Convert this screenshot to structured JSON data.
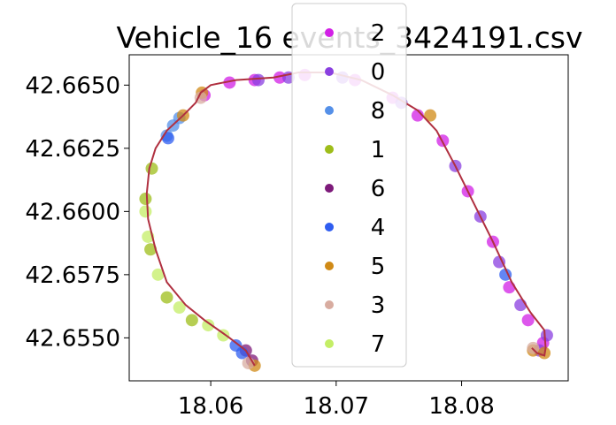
{
  "chart_data": {
    "type": "scatter",
    "title": "Vehicle_16 events_3424191.csv",
    "xlabel": "",
    "ylabel": "",
    "xlim": [
      18.0535,
      18.0885
    ],
    "ylim": [
      42.6533,
      42.6662
    ],
    "x_ticks": [
      "18.06",
      "18.07",
      "18.08"
    ],
    "x_tick_values": [
      18.06,
      18.07,
      18.08
    ],
    "y_ticks": [
      "42.6550",
      "42.6575",
      "42.6600",
      "42.6625",
      "42.6650"
    ],
    "y_tick_values": [
      42.655,
      42.6575,
      42.66,
      42.6625,
      42.665
    ],
    "grid": false,
    "legend_position": "top-center",
    "route_line_color": "#b03040",
    "series": [
      {
        "name": "2",
        "color": "#d21fe6",
        "points": [
          [
            18.0595,
            42.6646
          ],
          [
            18.0615,
            42.6651
          ],
          [
            18.0635,
            42.6652
          ],
          [
            18.0655,
            42.6653
          ],
          [
            18.0675,
            42.6654
          ],
          [
            18.0715,
            42.6652
          ],
          [
            18.0745,
            42.6645
          ],
          [
            18.0765,
            42.6638
          ],
          [
            18.0785,
            42.6628
          ],
          [
            18.0805,
            42.6608
          ],
          [
            18.0825,
            42.6588
          ],
          [
            18.0838,
            42.657
          ],
          [
            18.0853,
            42.6557
          ],
          [
            18.0865,
            42.6548
          ]
        ]
      },
      {
        "name": "0",
        "color": "#8a3fe0",
        "points": [
          [
            18.0638,
            42.6652
          ],
          [
            18.0662,
            42.6653
          ],
          [
            18.0705,
            42.6653
          ],
          [
            18.0752,
            42.6643
          ],
          [
            18.0795,
            42.6618
          ],
          [
            18.0815,
            42.6598
          ],
          [
            18.083,
            42.658
          ],
          [
            18.0847,
            42.6563
          ],
          [
            18.0868,
            42.6551
          ],
          [
            18.0862,
            42.6545
          ]
        ]
      },
      {
        "name": "8",
        "color": "#5590e8",
        "points": [
          [
            18.0565,
            42.663
          ],
          [
            18.057,
            42.6634
          ],
          [
            18.0575,
            42.6637
          ]
        ]
      },
      {
        "name": "1",
        "color": "#9ebd1a",
        "points": [
          [
            18.0553,
            42.6617
          ],
          [
            18.0548,
            42.6605
          ],
          [
            18.0552,
            42.6585
          ],
          [
            18.0565,
            42.6566
          ],
          [
            18.0585,
            42.6557
          ]
        ]
      },
      {
        "name": "6",
        "color": "#7d1a7a",
        "points": [
          [
            18.0628,
            42.6545
          ],
          [
            18.0633,
            42.6541
          ]
        ]
      },
      {
        "name": "4",
        "color": "#2f5df0",
        "points": [
          [
            18.062,
            42.6547
          ],
          [
            18.0625,
            42.6544
          ],
          [
            18.0566,
            42.6629
          ],
          [
            18.0835,
            42.6575
          ]
        ]
      },
      {
        "name": "5",
        "color": "#d08a16",
        "points": [
          [
            18.0578,
            42.6638
          ],
          [
            18.0593,
            42.6647
          ],
          [
            18.0775,
            42.6638
          ],
          [
            18.0857,
            42.6545
          ],
          [
            18.0866,
            42.6544
          ],
          [
            18.0635,
            42.6539
          ]
        ]
      },
      {
        "name": "3",
        "color": "#d8aca0",
        "points": [
          [
            18.0592,
            42.6645
          ],
          [
            18.0857,
            42.6546
          ],
          [
            18.063,
            42.654
          ]
        ]
      },
      {
        "name": "7",
        "color": "#c4ee66",
        "points": [
          [
            18.0548,
            42.66
          ],
          [
            18.055,
            42.659
          ],
          [
            18.0558,
            42.6575
          ],
          [
            18.0575,
            42.6562
          ],
          [
            18.0598,
            42.6555
          ],
          [
            18.061,
            42.6551
          ]
        ]
      }
    ],
    "route": [
      [
        18.0635,
        42.6539
      ],
      [
        18.0628,
        42.6545
      ],
      [
        18.0615,
        42.655
      ],
      [
        18.0595,
        42.6557
      ],
      [
        18.058,
        42.6563
      ],
      [
        18.0565,
        42.6572
      ],
      [
        18.0556,
        42.6585
      ],
      [
        18.055,
        42.6597
      ],
      [
        18.0549,
        42.6607
      ],
      [
        18.0551,
        42.6617
      ],
      [
        18.0556,
        42.6625
      ],
      [
        18.0565,
        42.6632
      ],
      [
        18.0578,
        42.6638
      ],
      [
        18.0588,
        42.6643
      ],
      [
        18.0592,
        42.6647
      ],
      [
        18.06,
        42.665
      ],
      [
        18.062,
        42.6652
      ],
      [
        18.065,
        42.6653
      ],
      [
        18.067,
        42.6655
      ],
      [
        18.0695,
        42.6655
      ],
      [
        18.072,
        42.6652
      ],
      [
        18.0745,
        42.6646
      ],
      [
        18.0765,
        42.664
      ],
      [
        18.078,
        42.6632
      ],
      [
        18.0795,
        42.6618
      ],
      [
        18.081,
        42.6603
      ],
      [
        18.0825,
        42.6588
      ],
      [
        18.084,
        42.6572
      ],
      [
        18.0855,
        42.656
      ],
      [
        18.0866,
        42.6553
      ],
      [
        18.0867,
        42.6546
      ],
      [
        18.0866,
        42.6543
      ],
      [
        18.086,
        42.6544
      ],
      [
        18.0856,
        42.6546
      ]
    ]
  }
}
